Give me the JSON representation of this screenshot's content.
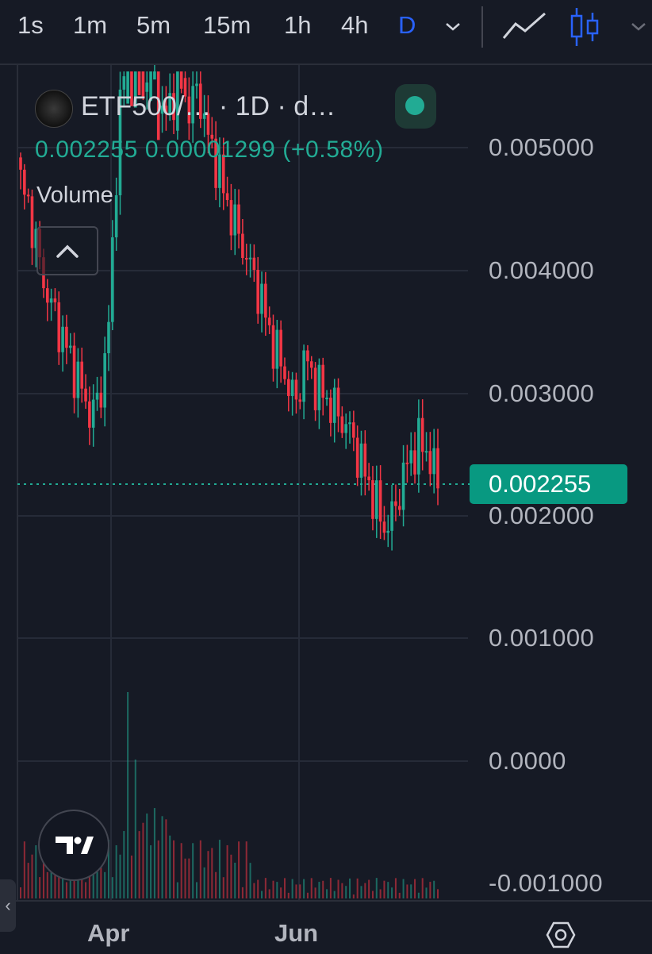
{
  "toolbar": {
    "timeframes": [
      "1s",
      "1m",
      "5m",
      "15m",
      "1h",
      "4h",
      "D"
    ],
    "active_timeframe": "D",
    "icons": [
      "chevron-down-icon",
      "line-chart-icon",
      "candlestick-icon",
      "chevron-down-icon"
    ]
  },
  "legend": {
    "symbol_title": "ETF500/… · 1D · d…",
    "ohlc": "0.002255 0.00001299 (+0.58%)",
    "volume_label": "Volume",
    "live_indicator_color": "#22ab94"
  },
  "price_axis": {
    "labels": [
      "0.005000",
      "0.004000",
      "0.003000",
      "0.002000",
      "0.001000",
      "0.0000",
      "-0.001000"
    ],
    "current_price": "0.002255",
    "current_price_color": "#089981"
  },
  "time_axis": {
    "labels": [
      "Apr",
      "Jun"
    ]
  },
  "colors": {
    "background": "#161a25",
    "up": "#22ab94",
    "down": "#f23645",
    "grid": "#262b38"
  },
  "chart_data": {
    "type": "candlestick",
    "symbol": "ETF500/…",
    "interval": "1D",
    "y_range": [
      -0.001,
      0.0055
    ],
    "last_price": 0.002255,
    "change": 1.299e-05,
    "change_percent": 0.58,
    "approximate_close_path": [
      0.0047,
      0.0045,
      0.0041,
      0.0038,
      0.0036,
      0.0034,
      0.0032,
      0.003,
      0.0028,
      0.003,
      0.0036,
      0.0052,
      0.0058,
      0.0057,
      0.0055,
      0.0058,
      0.0052,
      0.0054,
      0.0056,
      0.0053,
      0.0055,
      0.0051,
      0.0049,
      0.0046,
      0.0044,
      0.0042,
      0.004,
      0.0038,
      0.0035,
      0.0033,
      0.0031,
      0.0029,
      0.0033,
      0.0031,
      0.003,
      0.0029,
      0.0028,
      0.0027,
      0.0025,
      0.0023,
      0.0021,
      0.0019,
      0.002,
      0.0023,
      0.0025,
      0.0026,
      0.0025,
      0.00226
    ]
  }
}
